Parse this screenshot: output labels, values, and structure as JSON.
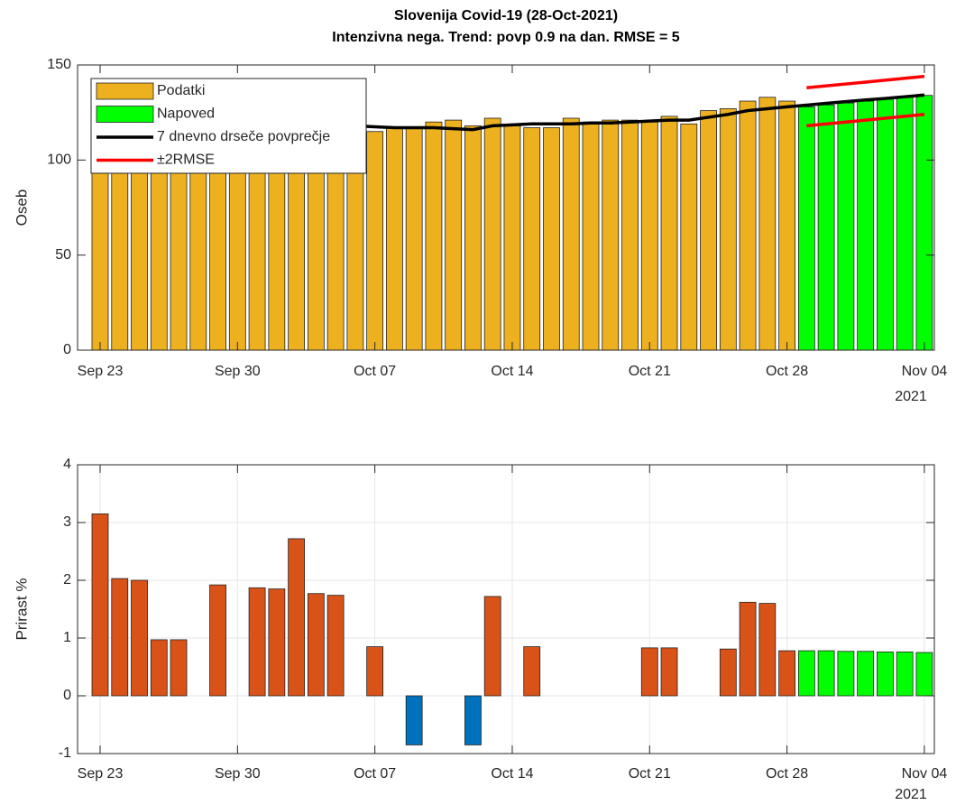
{
  "chart_data": [
    {
      "type": "bar",
      "title": "Slovenija Covid-19 (28-Oct-2021)",
      "subtitle": "Intenzivna nega. Trend: povp 0.9 na dan. RMSE = 5",
      "ylabel": "Oseb",
      "x_secondary_label": "2021",
      "categories": [
        "Sep 23",
        null,
        null,
        null,
        null,
        null,
        null,
        "Sep 30",
        null,
        null,
        null,
        null,
        null,
        null,
        "Oct 07",
        null,
        null,
        null,
        null,
        null,
        null,
        "Oct 14",
        null,
        null,
        null,
        null,
        null,
        null,
        "Oct 21",
        null,
        null,
        null,
        null,
        null,
        null,
        "Oct 28",
        null,
        null,
        null,
        null,
        null,
        null,
        "Nov 04"
      ],
      "ylim": [
        0,
        150
      ],
      "yticks": [
        0,
        50,
        100,
        150
      ],
      "grid": false,
      "legend": "upper left",
      "series": [
        {
          "name": "Podatki",
          "type": "bar",
          "color": "#edb120",
          "values": [
            105,
            106,
            108,
            109,
            110,
            110,
            111,
            111,
            112,
            113,
            116,
            117,
            116,
            113,
            115,
            117,
            117,
            120,
            121,
            118,
            122,
            118,
            117,
            117,
            122,
            120,
            121,
            121,
            120,
            123,
            119,
            126,
            127,
            131,
            133,
            131,
            null,
            null,
            null,
            null,
            null,
            null,
            null
          ]
        },
        {
          "name": "Napoved",
          "type": "bar",
          "color": "#00ff00",
          "values": [
            null,
            null,
            null,
            null,
            null,
            null,
            null,
            null,
            null,
            null,
            null,
            null,
            null,
            null,
            null,
            null,
            null,
            null,
            null,
            null,
            null,
            null,
            null,
            null,
            null,
            null,
            null,
            null,
            null,
            null,
            null,
            null,
            null,
            null,
            null,
            null,
            128,
            129,
            130,
            131,
            132,
            133,
            134
          ]
        },
        {
          "name": "7 dnevno drseče povprečje",
          "type": "line",
          "color": "#000000",
          "values": [
            106,
            107,
            108,
            109,
            110,
            111,
            112,
            113,
            114,
            115,
            116,
            117,
            118,
            118,
            117.5,
            117,
            117,
            117,
            116.5,
            116,
            118,
            118.5,
            119,
            119,
            119,
            119.5,
            119.5,
            120,
            120.5,
            121,
            121,
            122.5,
            124,
            126,
            127,
            128,
            128.9,
            129.8,
            130.7,
            131.6,
            132.4,
            133.3,
            134.2
          ]
        },
        {
          "name": "±2RMSE",
          "type": "line",
          "color": "#ff0000",
          "values": [
            null,
            null,
            null,
            null,
            null,
            null,
            null,
            null,
            null,
            null,
            null,
            null,
            null,
            null,
            null,
            null,
            null,
            null,
            null,
            null,
            null,
            null,
            null,
            null,
            null,
            null,
            null,
            null,
            null,
            null,
            null,
            null,
            null,
            null,
            null,
            null,
            138,
            139,
            140,
            141,
            142,
            143,
            144
          ],
          "lower": [
            null,
            null,
            null,
            null,
            null,
            null,
            null,
            null,
            null,
            null,
            null,
            null,
            null,
            null,
            null,
            null,
            null,
            null,
            null,
            null,
            null,
            null,
            null,
            null,
            null,
            null,
            null,
            null,
            null,
            null,
            null,
            null,
            null,
            null,
            null,
            null,
            118,
            119,
            120,
            121,
            122,
            123,
            124
          ]
        }
      ]
    },
    {
      "type": "bar",
      "ylabel": "Prirast %",
      "x_secondary_label": "2021",
      "categories": [
        "Sep 23",
        null,
        null,
        null,
        null,
        null,
        null,
        "Sep 30",
        null,
        null,
        null,
        null,
        null,
        null,
        "Oct 07",
        null,
        null,
        null,
        null,
        null,
        null,
        "Oct 14",
        null,
        null,
        null,
        null,
        null,
        null,
        "Oct 21",
        null,
        null,
        null,
        null,
        null,
        null,
        "Oct 28",
        null,
        null,
        null,
        null,
        null,
        null,
        "Nov 04"
      ],
      "ylim": [
        -1,
        4
      ],
      "yticks": [
        -1,
        0,
        1,
        2,
        3,
        4
      ],
      "grid": true,
      "series": [
        {
          "type": "bar",
          "color": "#d95319",
          "negative_color": "#0072bd",
          "values": [
            3.15,
            2.03,
            2.0,
            0.97,
            0.97,
            0,
            1.92,
            0,
            1.87,
            1.85,
            2.72,
            1.77,
            1.74,
            0,
            0.85,
            0,
            -0.85,
            0,
            0,
            -0.85,
            1.72,
            0,
            0.85,
            0,
            0,
            0,
            0,
            0,
            0.83,
            0.83,
            0,
            0,
            0.81,
            1.62,
            1.6,
            0.78,
            null,
            null,
            null,
            null,
            null,
            null,
            null
          ]
        },
        {
          "type": "bar",
          "color": "#00ff00",
          "values": [
            null,
            null,
            null,
            null,
            null,
            null,
            null,
            null,
            null,
            null,
            null,
            null,
            null,
            null,
            null,
            null,
            null,
            null,
            null,
            null,
            null,
            null,
            null,
            null,
            null,
            null,
            null,
            null,
            null,
            null,
            null,
            null,
            null,
            null,
            null,
            null,
            0.78,
            0.78,
            0.77,
            0.77,
            0.76,
            0.76,
            0.75
          ]
        }
      ]
    }
  ]
}
